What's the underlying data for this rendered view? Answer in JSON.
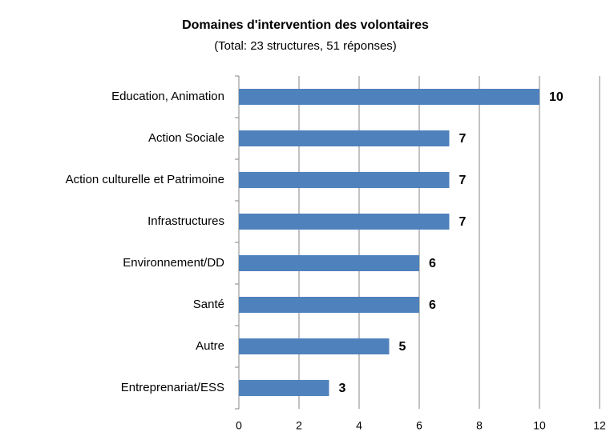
{
  "chart_data": {
    "type": "bar",
    "orientation": "horizontal",
    "title": "Domaines d'intervention des volontaires",
    "subtitle": "(Total: 23 structures, 51 réponses)",
    "categories": [
      "Education, Animation",
      "Action Sociale",
      "Action culturelle et Patrimoine",
      "Infrastructures",
      "Environnement/DD",
      "Santé",
      "Autre",
      "Entreprenariat/ESS"
    ],
    "values": [
      10,
      7,
      7,
      7,
      6,
      6,
      5,
      3
    ],
    "color": "#4f81bd",
    "xlim": [
      0,
      12
    ],
    "xticks": [
      0,
      2,
      4,
      6,
      8,
      10,
      12
    ],
    "grid": true
  }
}
